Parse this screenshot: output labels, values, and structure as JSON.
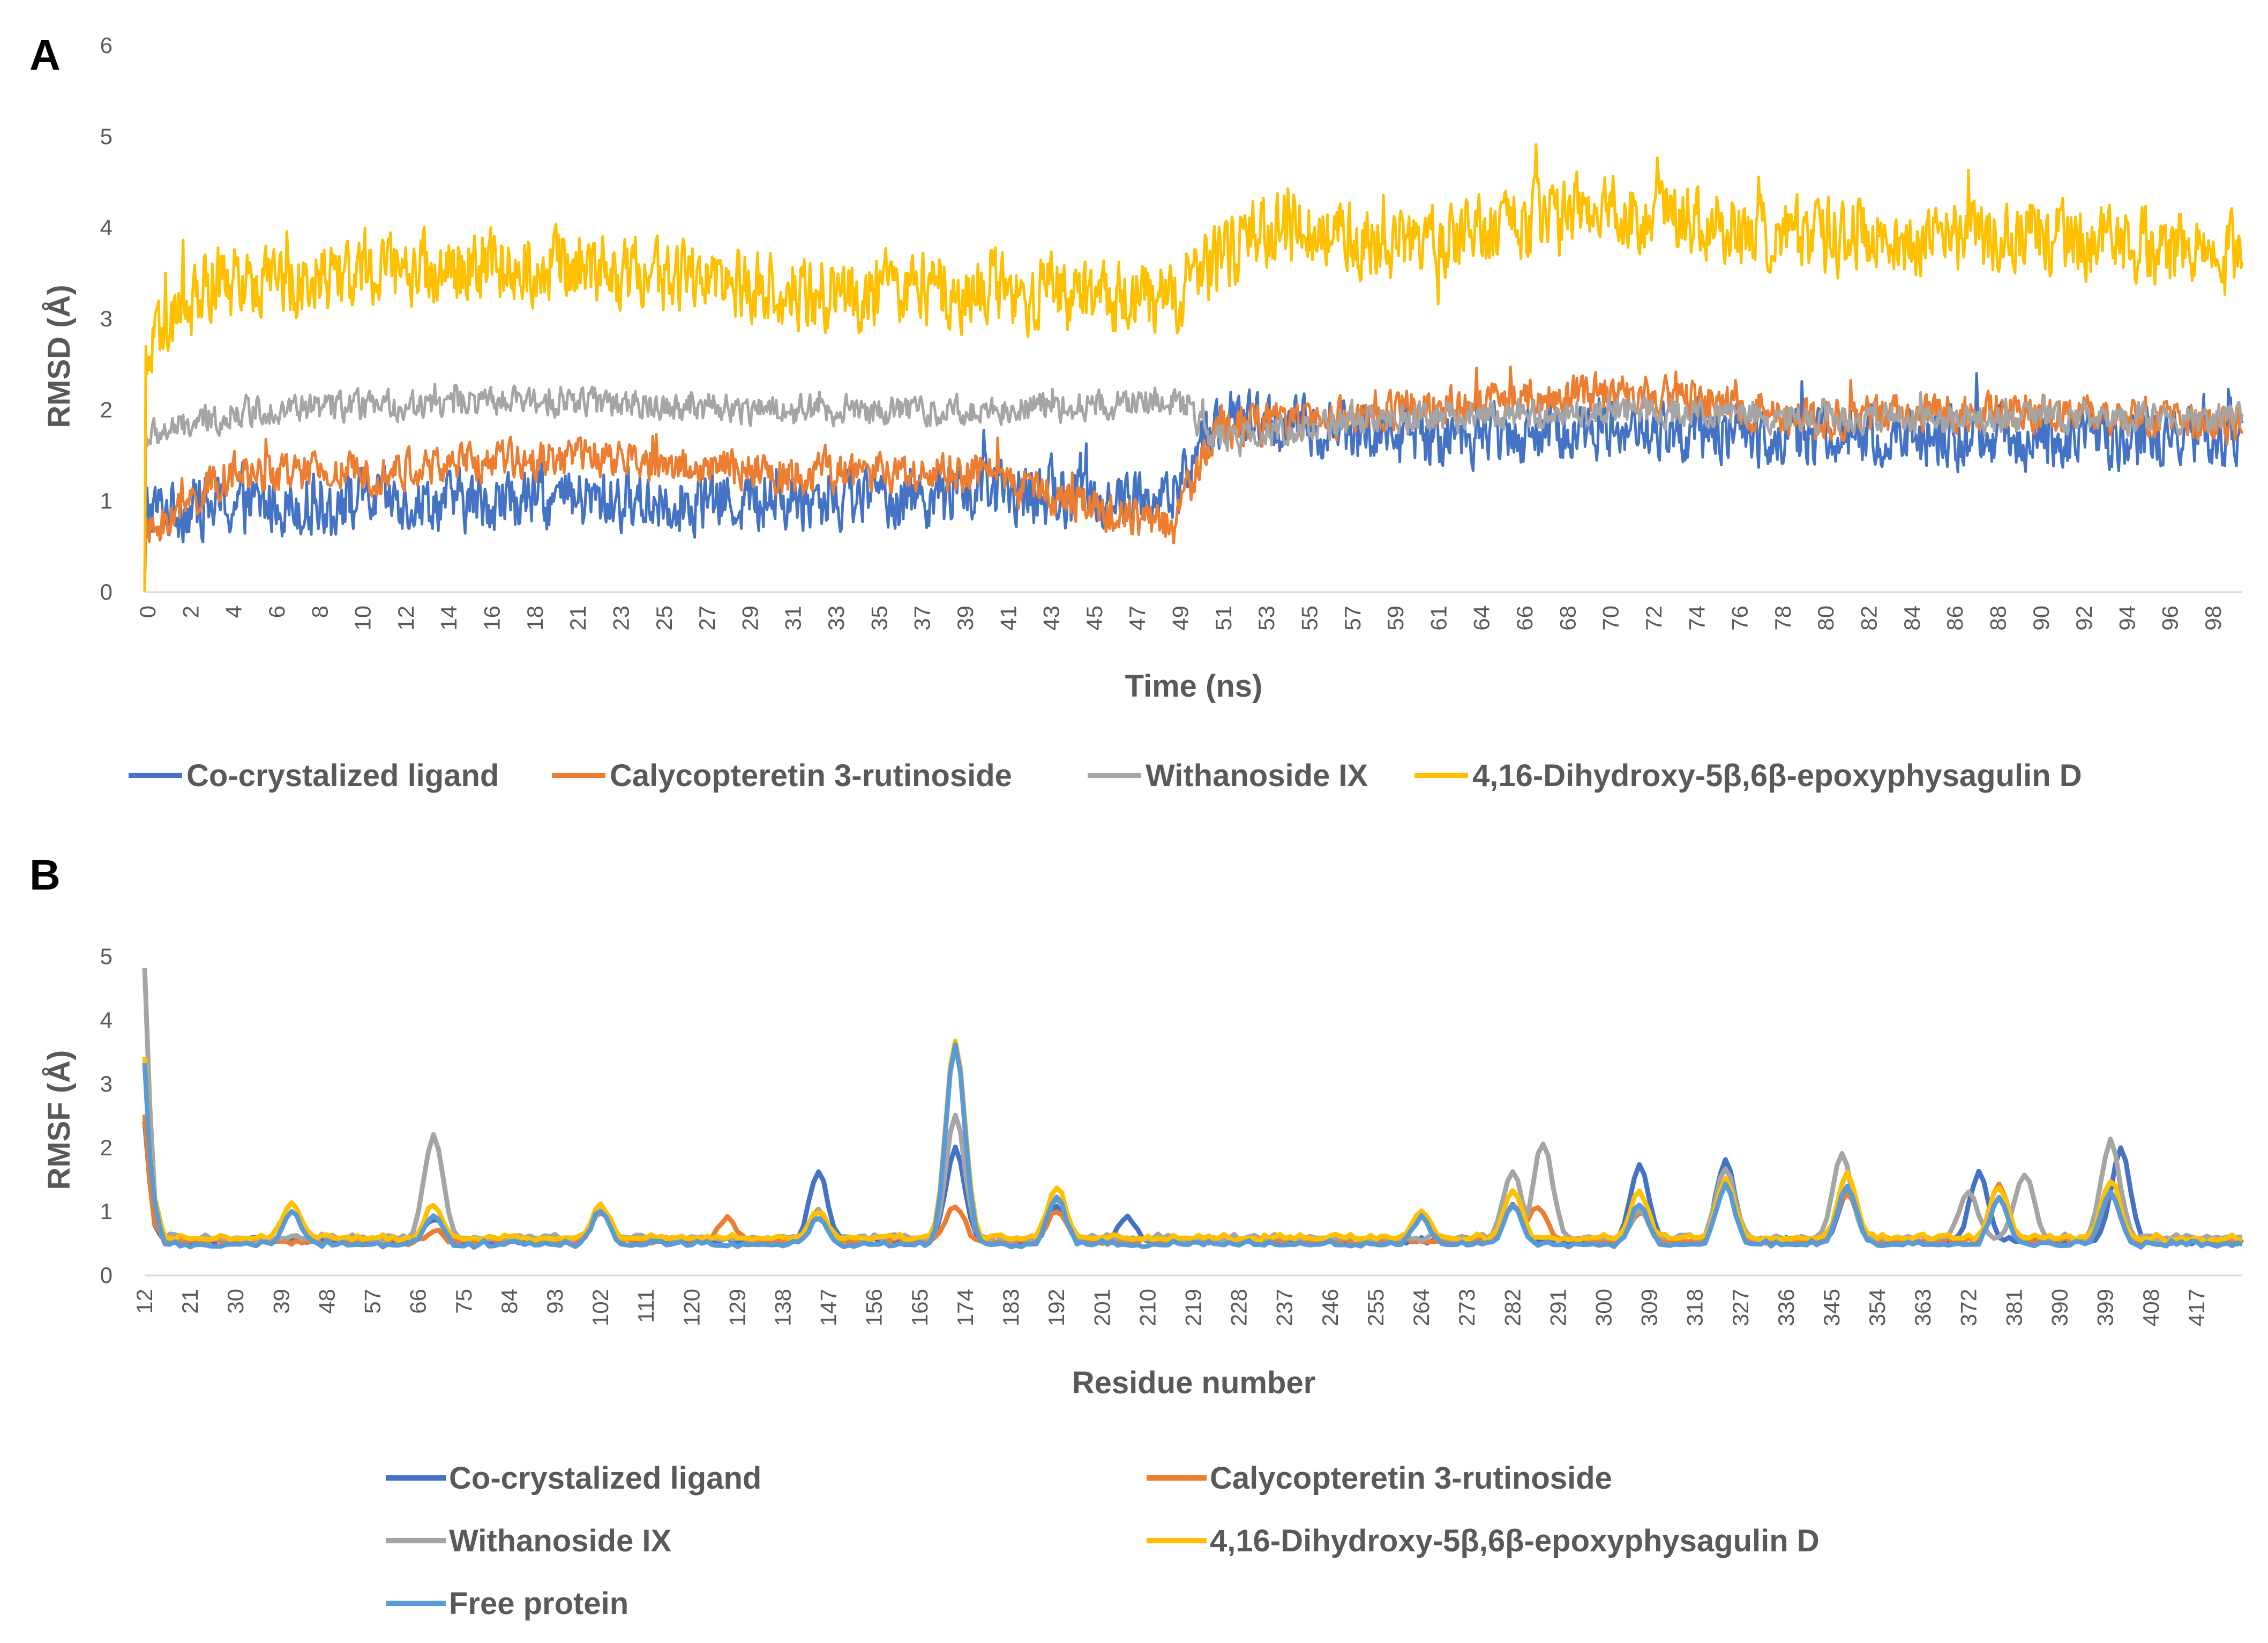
{
  "chart_data": [
    {
      "panel": "A",
      "type": "line",
      "title": "",
      "xlabel": "Time (ns)",
      "ylabel": "RMSD (Å)",
      "xlim": [
        0,
        100
      ],
      "ylim": [
        0,
        6
      ],
      "yticks": [
        0,
        1,
        2,
        3,
        4,
        5,
        6
      ],
      "xticks": [
        "0",
        "2",
        "4",
        "6",
        "8",
        "10",
        "12",
        "14",
        "16",
        "18",
        "21",
        "23",
        "25",
        "27",
        "29",
        "31",
        "33",
        "35",
        "37",
        "39",
        "41",
        "43",
        "45",
        "47",
        "49",
        "51",
        "53",
        "55",
        "57",
        "59",
        "61",
        "64",
        "66",
        "68",
        "70",
        "72",
        "74",
        "76",
        "78",
        "80",
        "82",
        "84",
        "86",
        "88",
        "90",
        "92",
        "94",
        "96",
        "98"
      ],
      "legend_position": "bottom",
      "series": [
        {
          "name": "Co-crystalized ligand",
          "color": "#4472C4",
          "profile": [
            [
              0,
              0.9
            ],
            [
              10,
              1.0
            ],
            [
              20,
              1.0
            ],
            [
              30,
              1.0
            ],
            [
              40,
              1.1
            ],
            [
              49,
              1.0
            ],
            [
              51,
              1.9
            ],
            [
              60,
              1.7
            ],
            [
              70,
              1.8
            ],
            [
              80,
              1.7
            ],
            [
              90,
              1.7
            ],
            [
              100,
              1.7
            ]
          ],
          "noise": 0.45
        },
        {
          "name": "Calycopteretin 3-rutinoside",
          "color": "#ED7D31",
          "profile": [
            [
              0,
              0.6
            ],
            [
              4,
              1.3
            ],
            [
              10,
              1.3
            ],
            [
              20,
              1.5
            ],
            [
              30,
              1.3
            ],
            [
              40,
              1.3
            ],
            [
              49,
              0.7
            ],
            [
              51,
              1.8
            ],
            [
              60,
              2.0
            ],
            [
              70,
              2.2
            ],
            [
              80,
              1.9
            ],
            [
              90,
              2.0
            ],
            [
              100,
              1.8
            ]
          ],
          "noise": 0.3
        },
        {
          "name": "Withanoside IX",
          "color": "#A5A5A5",
          "profile": [
            [
              0,
              1.7
            ],
            [
              5,
              2.0
            ],
            [
              20,
              2.1
            ],
            [
              30,
              2.0
            ],
            [
              40,
              2.0
            ],
            [
              49,
              2.1
            ],
            [
              51,
              1.7
            ],
            [
              60,
              1.9
            ],
            [
              70,
              2.0
            ],
            [
              80,
              1.9
            ],
            [
              90,
              1.9
            ],
            [
              100,
              1.9
            ]
          ],
          "noise": 0.22
        },
        {
          "name": "4,16-Dihydroxy-5β,6β-epoxyphysagulin D",
          "color": "#FFC000",
          "profile": [
            [
              0,
              2.5
            ],
            [
              3,
              3.4
            ],
            [
              10,
              3.5
            ],
            [
              20,
              3.6
            ],
            [
              30,
              3.3
            ],
            [
              40,
              3.3
            ],
            [
              49,
              3.2
            ],
            [
              51,
              3.6
            ],
            [
              53,
              4.0
            ],
            [
              60,
              3.8
            ],
            [
              70,
              4.2
            ],
            [
              80,
              3.9
            ],
            [
              90,
              3.9
            ],
            [
              100,
              3.7
            ]
          ],
          "noise": 0.55
        }
      ]
    },
    {
      "panel": "B",
      "type": "line",
      "title": "",
      "xlabel": "Residue number",
      "ylabel": "RMSF (Å)",
      "xlim": [
        12,
        426
      ],
      "ylim": [
        0,
        5
      ],
      "yticks": [
        0,
        1,
        2,
        3,
        4,
        5
      ],
      "xticks": [
        "12",
        "21",
        "30",
        "39",
        "48",
        "57",
        "66",
        "75",
        "84",
        "93",
        "102",
        "111",
        "120",
        "129",
        "138",
        "147",
        "156",
        "165",
        "174",
        "183",
        "192",
        "201",
        "210",
        "219",
        "228",
        "237",
        "246",
        "255",
        "264",
        "273",
        "282",
        "291",
        "300",
        "309",
        "318",
        "327",
        "336",
        "345",
        "354",
        "363",
        "372",
        "381",
        "390",
        "399",
        "408",
        "417"
      ],
      "legend_position": "bottom",
      "series": [
        {
          "name": "Co-crystalized ligand",
          "color": "#4472C4",
          "base": 0.5,
          "peaks": [
            [
              12,
              2.4
            ],
            [
              14,
              0.8
            ],
            [
              69,
              0.9
            ],
            [
              102,
              1.0
            ],
            [
              145,
              1.6
            ],
            [
              172,
              2.0
            ],
            [
              192,
              1.1
            ],
            [
              206,
              0.9
            ],
            [
              282,
              1.1
            ],
            [
              307,
              1.7
            ],
            [
              324,
              1.8
            ],
            [
              348,
              1.3
            ],
            [
              374,
              1.6
            ],
            [
              402,
              2.0
            ]
          ]
        },
        {
          "name": "Calycopteretin 3-rutinoside",
          "color": "#ED7D31",
          "base": 0.5,
          "peaks": [
            [
              12,
              2.5
            ],
            [
              14,
              0.8
            ],
            [
              69,
              0.7
            ],
            [
              102,
              1.0
            ],
            [
              127,
              0.9
            ],
            [
              145,
              1.0
            ],
            [
              172,
              1.1
            ],
            [
              192,
              1.0
            ],
            [
              282,
              1.1
            ],
            [
              287,
              1.1
            ],
            [
              307,
              1.0
            ],
            [
              324,
              1.5
            ],
            [
              348,
              1.3
            ],
            [
              378,
              1.4
            ],
            [
              400,
              1.3
            ]
          ]
        },
        {
          "name": "Withanoside IX",
          "color": "#A5A5A5",
          "base": 0.55,
          "peaks": [
            [
              12,
              4.8
            ],
            [
              14,
              1.2
            ],
            [
              69,
              2.2
            ],
            [
              102,
              1.0
            ],
            [
              145,
              1.0
            ],
            [
              172,
              2.5
            ],
            [
              192,
              1.2
            ],
            [
              282,
              1.6
            ],
            [
              288,
              2.1
            ],
            [
              307,
              1.0
            ],
            [
              324,
              1.7
            ],
            [
              347,
              1.9
            ],
            [
              372,
              1.3
            ],
            [
              383,
              1.6
            ],
            [
              400,
              2.1
            ]
          ]
        },
        {
          "name": "4,16-Dihydroxy-5β,6β-epoxyphysagulin D",
          "color": "#FFC000",
          "base": 0.55,
          "peaks": [
            [
              12,
              3.4
            ],
            [
              14,
              1.2
            ],
            [
              41,
              1.1
            ],
            [
              69,
              1.1
            ],
            [
              102,
              1.1
            ],
            [
              145,
              1.0
            ],
            [
              172,
              3.7
            ],
            [
              192,
              1.4
            ],
            [
              264,
              1.0
            ],
            [
              282,
              1.3
            ],
            [
              307,
              1.3
            ],
            [
              324,
              1.5
            ],
            [
              348,
              1.6
            ],
            [
              378,
              1.4
            ],
            [
              400,
              1.5
            ]
          ]
        },
        {
          "name": "Free protein",
          "color": "#5B9BD5",
          "base": 0.45,
          "peaks": [
            [
              12,
              3.3
            ],
            [
              14,
              1.1
            ],
            [
              41,
              1.0
            ],
            [
              69,
              0.9
            ],
            [
              102,
              1.0
            ],
            [
              145,
              0.9
            ],
            [
              172,
              3.6
            ],
            [
              192,
              1.2
            ],
            [
              264,
              0.9
            ],
            [
              282,
              1.1
            ],
            [
              307,
              1.1
            ],
            [
              324,
              1.4
            ],
            [
              348,
              1.4
            ],
            [
              378,
              1.2
            ],
            [
              400,
              1.3
            ]
          ]
        }
      ]
    }
  ]
}
